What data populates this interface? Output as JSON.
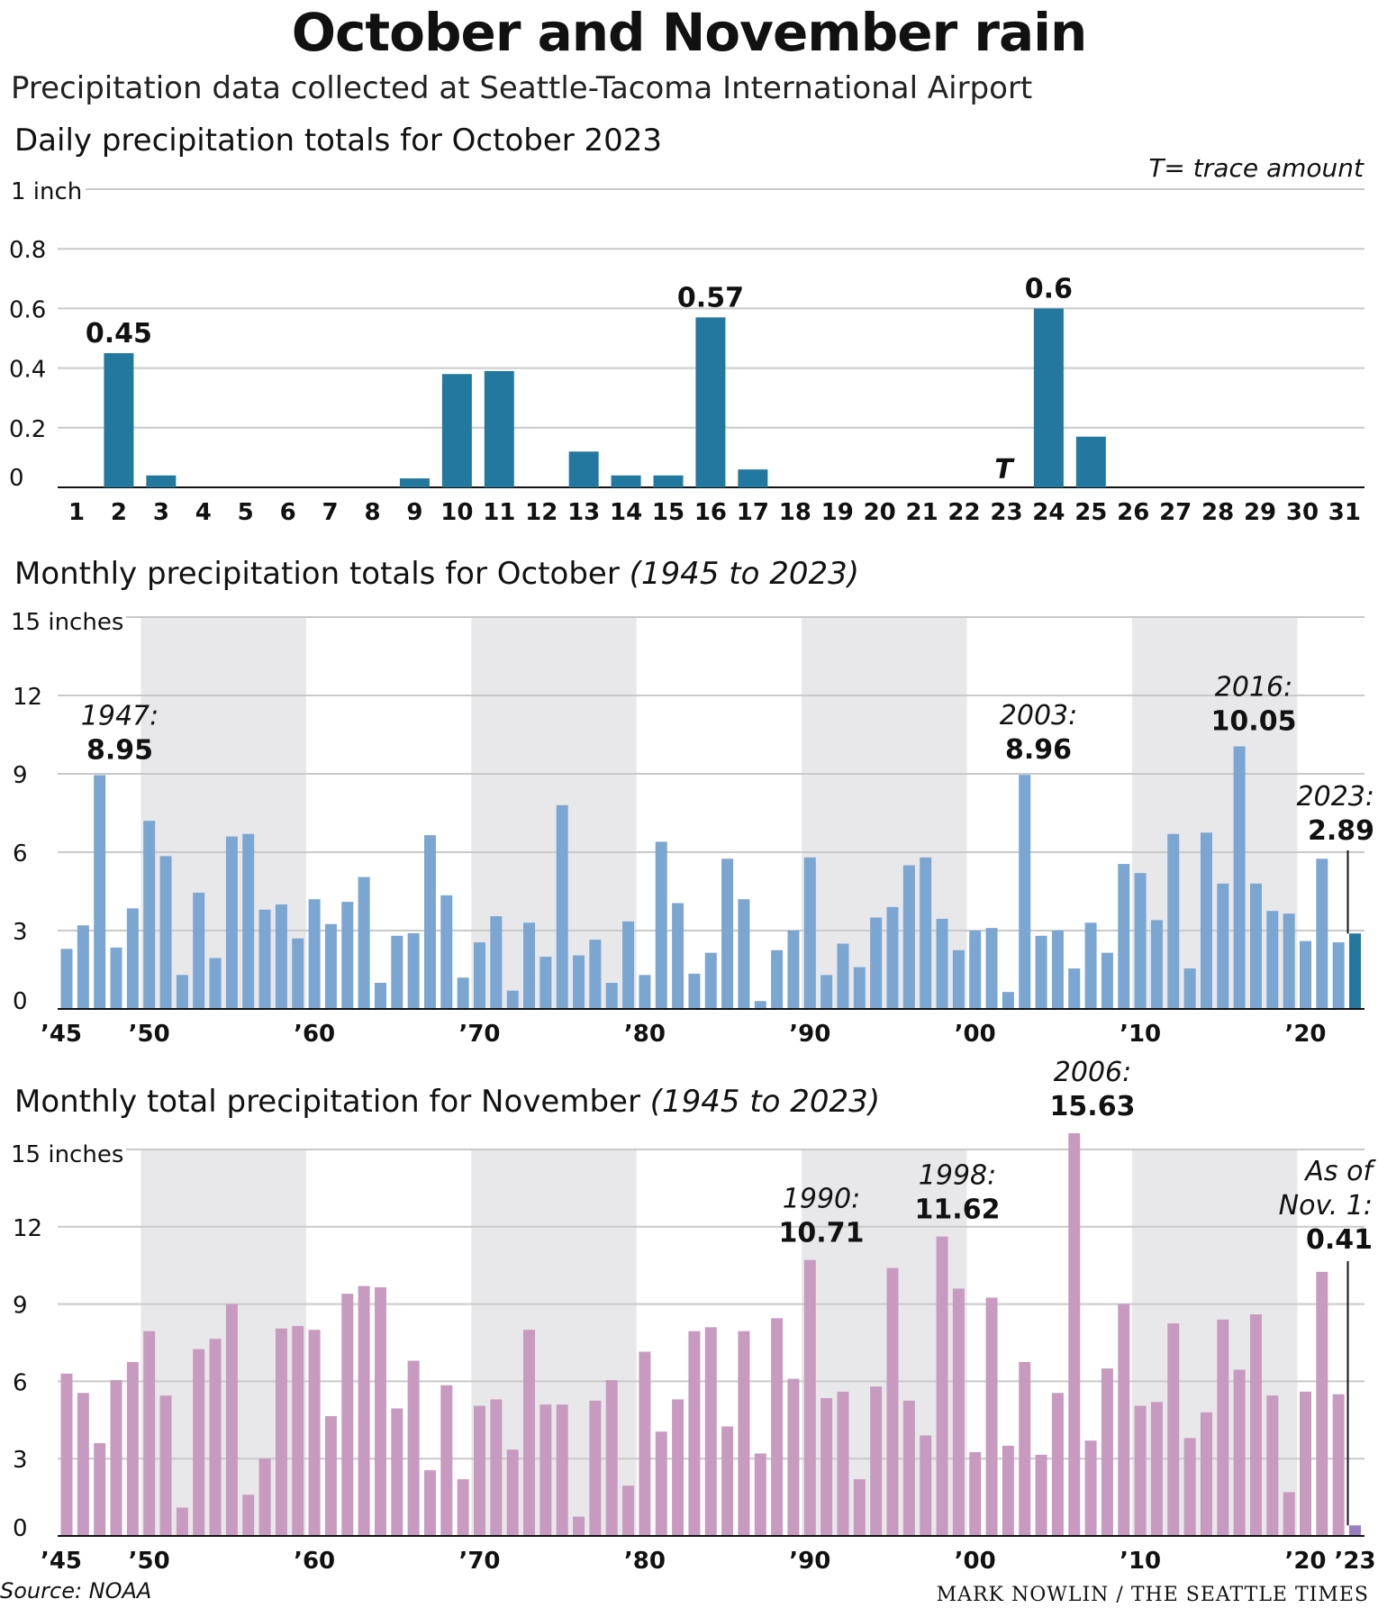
{
  "header": {
    "title": "October and November rain",
    "subtitle": "Precipitation data collected at Seattle-Tacoma International Airport"
  },
  "footer": {
    "source": "Source: NOAA",
    "credit": "MARK NOWLIN / THE SEATTLE TIMES"
  },
  "colors": {
    "daily_bar": "#22789f",
    "oct_bar": "#7ba6d2",
    "oct_highlight": "#22789f",
    "nov_bar": "#c89ac0",
    "nov_highlight": "#9a7fc0",
    "decade_shade": "#e8e8ea"
  },
  "chart_data": [
    {
      "type": "bar",
      "title": "Daily precipitation totals for October 2023",
      "note": "T= trace amount",
      "unit_label": "1 inch",
      "categories": [
        "1",
        "2",
        "3",
        "4",
        "5",
        "6",
        "7",
        "8",
        "9",
        "10",
        "11",
        "12",
        "13",
        "14",
        "15",
        "16",
        "17",
        "18",
        "19",
        "20",
        "21",
        "22",
        "23",
        "24",
        "25",
        "26",
        "27",
        "28",
        "29",
        "30",
        "31"
      ],
      "values": [
        0,
        0.45,
        0.04,
        0,
        0,
        0,
        0,
        0,
        0.03,
        0.38,
        0.39,
        0,
        0.12,
        0.04,
        0.04,
        0.57,
        0.06,
        0,
        0,
        0,
        0,
        0,
        0,
        0.6,
        0.17,
        0,
        0,
        0,
        0,
        0,
        0
      ],
      "trace_day": "23",
      "trace_label": "T",
      "yticks": [
        "0",
        "0.2",
        "0.4",
        "0.6",
        "0.8"
      ],
      "ylim": [
        0,
        1
      ],
      "annotations": [
        {
          "category": "2",
          "value_label": "0.45"
        },
        {
          "category": "16",
          "value_label": "0.57"
        },
        {
          "category": "24",
          "value_label": "0.6"
        }
      ]
    },
    {
      "type": "bar",
      "title": "Monthly precipitation totals for October",
      "title_years": "(1945 to 2023)",
      "unit_label": "15 inches",
      "x_start": 1945,
      "values": [
        2.3,
        3.2,
        8.95,
        2.35,
        3.85,
        7.2,
        5.85,
        1.3,
        4.45,
        1.95,
        6.6,
        6.7,
        3.8,
        4.0,
        2.7,
        4.2,
        3.25,
        4.1,
        5.05,
        1.0,
        2.8,
        2.9,
        6.65,
        4.35,
        1.2,
        2.55,
        3.55,
        0.7,
        3.3,
        2.0,
        7.8,
        2.05,
        2.65,
        1.0,
        3.35,
        1.3,
        6.4,
        4.05,
        1.35,
        2.15,
        5.75,
        4.2,
        0.3,
        2.25,
        3.0,
        5.8,
        1.3,
        2.5,
        1.6,
        3.5,
        3.9,
        5.5,
        5.8,
        3.45,
        2.25,
        3.0,
        3.1,
        0.65,
        8.96,
        2.8,
        3.0,
        1.55,
        3.3,
        2.15,
        5.55,
        5.2,
        3.4,
        6.7,
        1.55,
        6.75,
        4.8,
        10.05,
        4.8,
        3.75,
        3.65,
        2.6,
        5.75,
        2.55,
        2.89
      ],
      "highlight_year": 2023,
      "yticks": [
        "0",
        "3",
        "6",
        "9",
        "12"
      ],
      "ylim": [
        0,
        15
      ],
      "xticks": [
        "’45",
        "’50",
        "’60",
        "’70",
        "’80",
        "’90",
        "’00",
        "’10",
        "’20"
      ],
      "annotations": [
        {
          "year": 1947,
          "year_label": "1947:",
          "value_label": "8.95"
        },
        {
          "year": 2003,
          "year_label": "2003:",
          "value_label": "8.96"
        },
        {
          "year": 2016,
          "year_label": "2016:",
          "value_label": "10.05"
        },
        {
          "year": 2023,
          "year_label": "2023:",
          "value_label": "2.89"
        }
      ]
    },
    {
      "type": "bar",
      "title": "Monthly total precipitation for November",
      "title_years": "(1945 to 2023)",
      "unit_label": "15 inches",
      "x_start": 1945,
      "values": [
        6.3,
        5.55,
        3.6,
        6.05,
        6.75,
        7.95,
        5.45,
        1.1,
        7.25,
        7.65,
        9.0,
        1.6,
        3.0,
        8.05,
        8.15,
        8.0,
        4.65,
        9.4,
        9.7,
        9.65,
        4.95,
        6.8,
        2.55,
        5.85,
        2.2,
        5.05,
        5.3,
        3.35,
        8.0,
        5.1,
        5.1,
        0.75,
        5.25,
        6.05,
        1.95,
        7.15,
        4.05,
        5.3,
        7.95,
        8.1,
        4.25,
        7.95,
        3.2,
        8.45,
        6.1,
        10.71,
        5.35,
        5.6,
        2.2,
        5.8,
        10.4,
        5.25,
        3.9,
        11.62,
        9.6,
        3.25,
        9.25,
        3.5,
        6.75,
        3.15,
        5.55,
        15.63,
        3.7,
        6.5,
        9.0,
        5.05,
        5.2,
        8.25,
        3.8,
        4.8,
        8.4,
        6.45,
        8.6,
        5.45,
        1.7,
        5.6,
        10.25,
        5.5,
        0.41
      ],
      "highlight_year": 2023,
      "yticks": [
        "0",
        "3",
        "6",
        "9",
        "12"
      ],
      "ylim": [
        0,
        15
      ],
      "xticks": [
        "’45",
        "’50",
        "’60",
        "’70",
        "’80",
        "’90",
        "’00",
        "’10",
        "’20",
        "’23"
      ],
      "annotations": [
        {
          "year": 1990,
          "year_label": "1990:",
          "value_label": "10.71"
        },
        {
          "year": 1998,
          "year_label": "1998:",
          "value_label": "11.62"
        },
        {
          "year": 2006,
          "year_label": "2006:",
          "value_label": "15.63"
        },
        {
          "year": 2023,
          "year_label_1": "As of",
          "year_label_2": "Nov. 1:",
          "value_label": "0.41"
        }
      ]
    }
  ]
}
